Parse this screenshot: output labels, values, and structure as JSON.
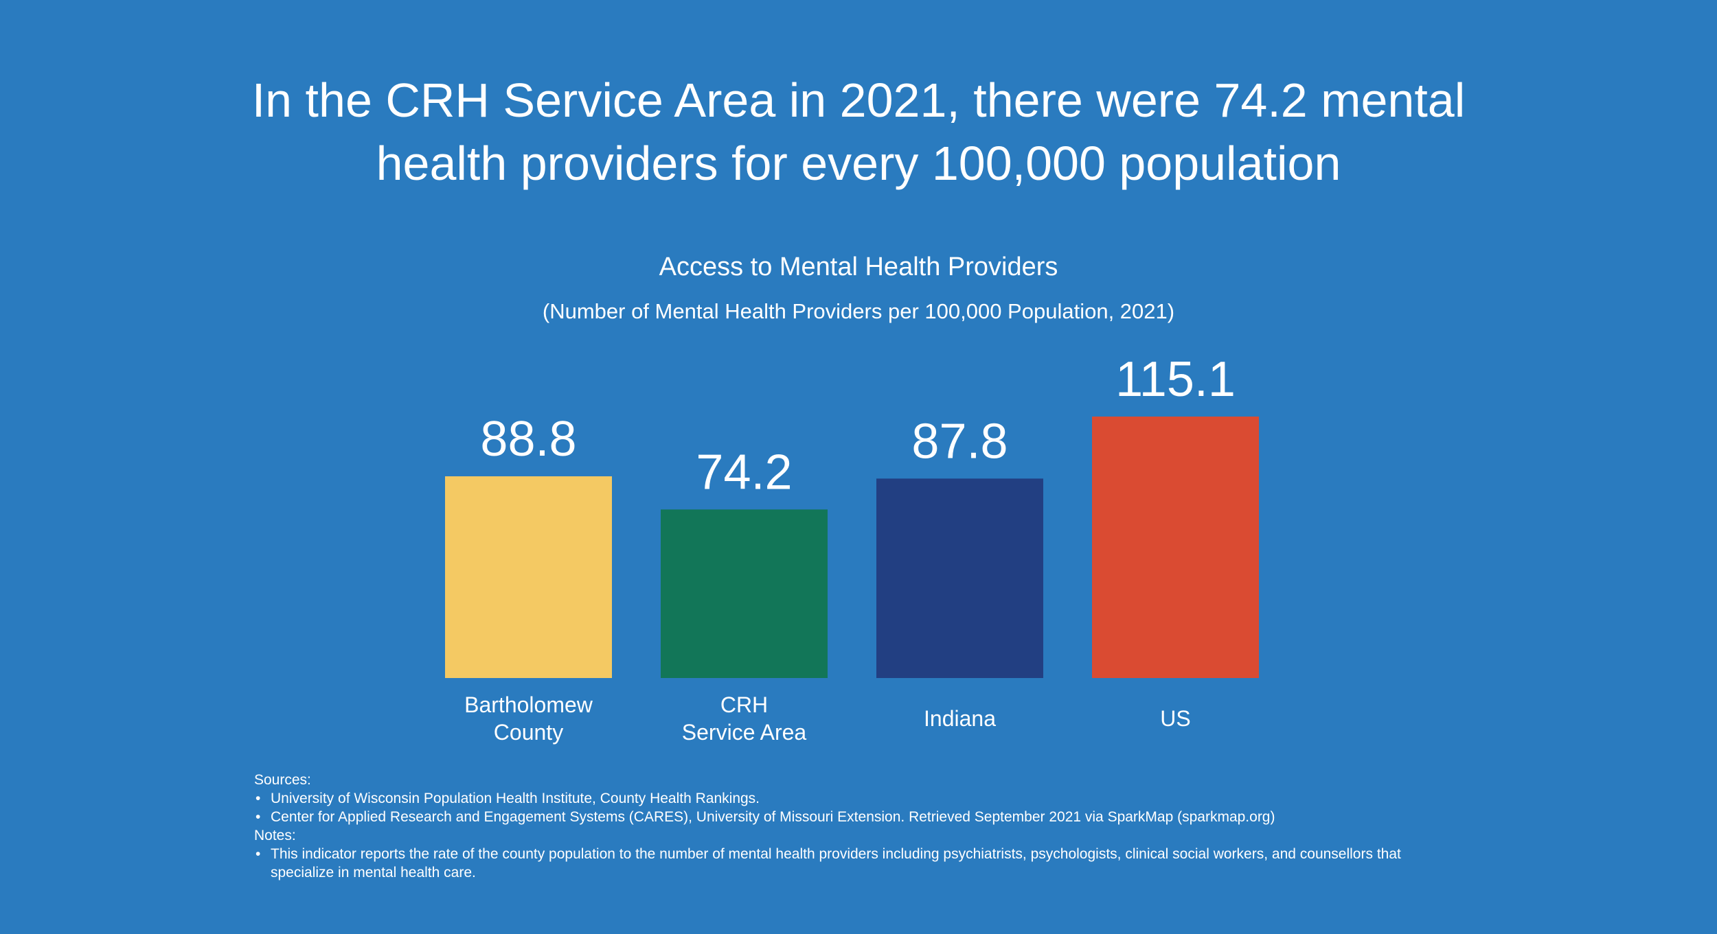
{
  "headline": {
    "line1": "In the CRH Service Area in 2021, there were 74.2 mental",
    "line2": "health providers for every 100,000 population"
  },
  "chart_data": {
    "type": "bar",
    "title": "Access to Mental Health Providers",
    "subtitle": "(Number of Mental Health Providers per 100,000 Population, 2021)",
    "categories": [
      [
        "Bartholomew",
        "County"
      ],
      [
        "CRH",
        "Service Area"
      ],
      [
        "Indiana"
      ],
      [
        "US"
      ]
    ],
    "values": [
      88.8,
      74.2,
      87.8,
      115.1
    ],
    "value_labels": [
      "88.8",
      "74.2",
      "87.8",
      "115.1"
    ],
    "colors": [
      "#f4c963",
      "#127658",
      "#223f82",
      "#da4b32"
    ],
    "xlabel": "",
    "ylabel": "",
    "ylim": [
      0,
      115.1
    ],
    "grid": false,
    "legend": "none"
  },
  "sources": {
    "heading": "Sources:",
    "items": [
      "University of Wisconsin Population Health Institute, County Health Rankings.",
      "Center for Applied Research and Engagement Systems (CARES), University of Missouri Extension. Retrieved September 2021 via SparkMap (sparkmap.org)"
    ]
  },
  "notes": {
    "heading": "Notes:",
    "items": [
      "This indicator reports the rate of the county population to the number of mental health providers including psychiatrists, psychologists, clinical social workers, and counsellors that specialize in mental health care."
    ]
  }
}
